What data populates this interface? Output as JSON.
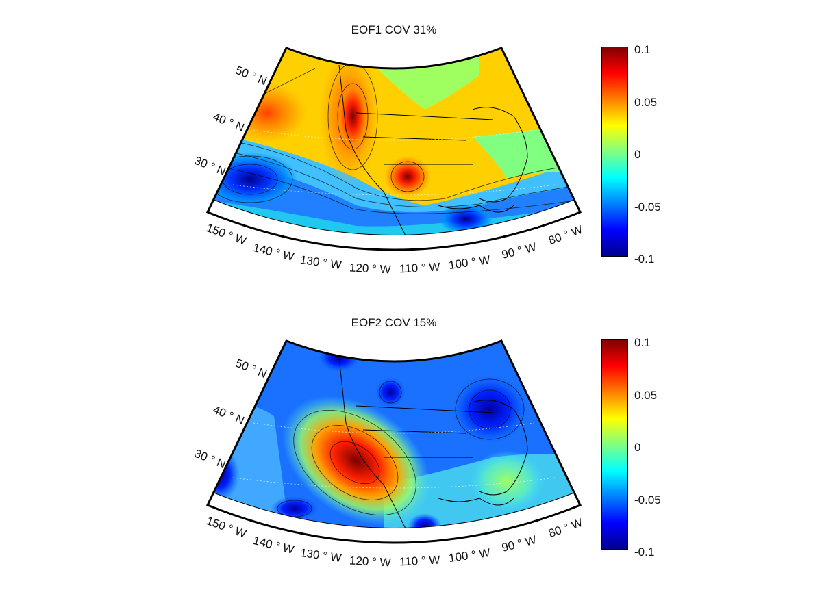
{
  "panels": [
    {
      "title": "EOF1 COV 31%",
      "colorbar_ticks": [
        "0.1",
        "0.05",
        "0",
        "-0.05",
        "-0.1"
      ],
      "lat_labels": [
        "50 ° N",
        "40 ° N",
        "30 ° N"
      ],
      "lon_labels": [
        "150 ° W",
        "140 ° W",
        "130 ° W",
        "120 ° W",
        "110 ° W",
        "100 ° W",
        "90 ° W",
        "80 ° W"
      ]
    },
    {
      "title": "EOF2 COV 15%",
      "colorbar_ticks": [
        "0.1",
        "0.05",
        "0",
        "-0.05",
        "-0.1"
      ],
      "lat_labels": [
        "50 ° N",
        "40 ° N",
        "30 ° N"
      ],
      "lon_labels": [
        "150 ° W",
        "140 ° W",
        "130 ° W",
        "120 ° W",
        "110 ° W",
        "100 ° W",
        "90 ° W",
        "80 ° W"
      ]
    }
  ],
  "colormap": [
    "#00008f",
    "#0000ff",
    "#0080ff",
    "#00ffff",
    "#80ff80",
    "#ffff00",
    "#ff8000",
    "#ff0000",
    "#800000"
  ],
  "colorbar_range": [
    -0.1,
    0.1
  ]
}
